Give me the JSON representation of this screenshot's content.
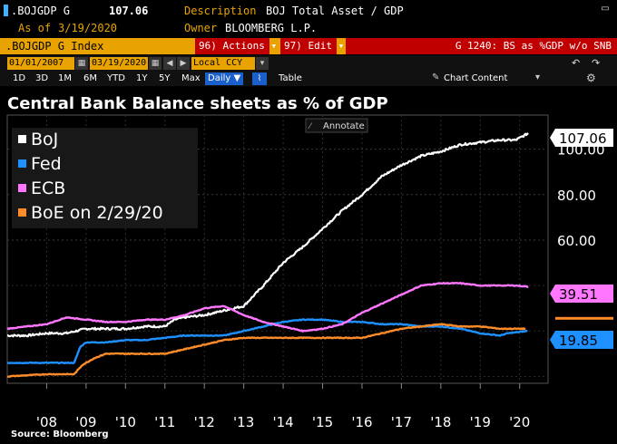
{
  "header": {
    "ticker": ".BOJGDP G",
    "value": "107.06",
    "desc_label": "Description",
    "desc_value": "BOJ Total Asset / GDP",
    "asof_label": "As of",
    "asof_value": "3/19/2020",
    "owner_label": "Owner",
    "owner_value": "BLOOMBERG L.P.",
    "accent": "#e8a300"
  },
  "toolbar": {
    "index_label": ".BOJGDP G Index",
    "actions_label": "96) Actions ▾",
    "edit_label": "97) Edit ▾",
    "page_label": "G 1240: BS as %GDP w/o SNB"
  },
  "dates": {
    "start": "01/01/2007",
    "end": "03/19/2020",
    "currency": "Local CCY"
  },
  "ranges": {
    "items": [
      "1D",
      "3D",
      "1M",
      "6M",
      "YTD",
      "1Y",
      "5Y",
      "Max"
    ],
    "period": "Daily ▼",
    "table_label": "Table",
    "chart_content_label": "Chart Content"
  },
  "annotate_label": "Annotate",
  "source": "Source: Bloomberg",
  "chart_data": {
    "type": "line",
    "title": "Central Bank Balance sheets as % of GDP",
    "xlabel": "",
    "ylabel": "",
    "xlim": [
      2007.0,
      2020.72
    ],
    "ylim": [
      -3,
      115
    ],
    "y_ticks": [
      {
        "v": 100,
        "label": "100.00"
      },
      {
        "v": 80,
        "label": "80.00"
      },
      {
        "v": 60,
        "label": "60.00"
      }
    ],
    "x_ticks": [
      {
        "v": 2008,
        "label": "'08"
      },
      {
        "v": 2009,
        "label": "'09"
      },
      {
        "v": 2010,
        "label": "'10"
      },
      {
        "v": 2011,
        "label": "'11"
      },
      {
        "v": 2012,
        "label": "'12"
      },
      {
        "v": 2013,
        "label": "'13"
      },
      {
        "v": 2014,
        "label": "'14"
      },
      {
        "v": 2015,
        "label": "'15"
      },
      {
        "v": 2016,
        "label": "'16"
      },
      {
        "v": 2017,
        "label": "'17"
      },
      {
        "v": 2018,
        "label": "'18"
      },
      {
        "v": 2019,
        "label": "'19"
      },
      {
        "v": 2020,
        "label": "'20"
      }
    ],
    "legend_position": "top-left",
    "series": [
      {
        "name": "BoJ",
        "color": "#ffffff",
        "last_label": "107.06",
        "points": [
          [
            2007.0,
            18
          ],
          [
            2007.5,
            18
          ],
          [
            2008.0,
            19
          ],
          [
            2008.5,
            19
          ],
          [
            2009.0,
            21
          ],
          [
            2009.5,
            21
          ],
          [
            2010.0,
            21
          ],
          [
            2010.5,
            22
          ],
          [
            2011.0,
            22
          ],
          [
            2011.25,
            25
          ],
          [
            2011.5,
            26
          ],
          [
            2012.0,
            27
          ],
          [
            2012.5,
            29
          ],
          [
            2013.0,
            31
          ],
          [
            2013.5,
            40
          ],
          [
            2014.0,
            50
          ],
          [
            2014.5,
            57
          ],
          [
            2015.0,
            65
          ],
          [
            2015.5,
            73
          ],
          [
            2016.0,
            80
          ],
          [
            2016.5,
            88
          ],
          [
            2017.0,
            93
          ],
          [
            2017.5,
            97
          ],
          [
            2018.0,
            99
          ],
          [
            2018.5,
            102
          ],
          [
            2019.0,
            103
          ],
          [
            2019.5,
            104
          ],
          [
            2019.9,
            104
          ],
          [
            2020.22,
            107
          ]
        ]
      },
      {
        "name": "Fed",
        "color": "#1e90ff",
        "last_label": "19.85",
        "points": [
          [
            2007.0,
            6
          ],
          [
            2008.7,
            6
          ],
          [
            2008.85,
            13
          ],
          [
            2009.0,
            15
          ],
          [
            2009.5,
            15
          ],
          [
            2010.0,
            16
          ],
          [
            2010.5,
            16
          ],
          [
            2011.0,
            17
          ],
          [
            2011.5,
            18
          ],
          [
            2012.0,
            18
          ],
          [
            2012.5,
            18
          ],
          [
            2013.0,
            20
          ],
          [
            2013.5,
            22
          ],
          [
            2014.0,
            24
          ],
          [
            2014.5,
            25
          ],
          [
            2015.0,
            25
          ],
          [
            2015.5,
            24
          ],
          [
            2016.0,
            24
          ],
          [
            2016.5,
            23
          ],
          [
            2017.0,
            23
          ],
          [
            2017.5,
            22
          ],
          [
            2018.0,
            22
          ],
          [
            2018.5,
            21
          ],
          [
            2019.0,
            19
          ],
          [
            2019.5,
            18
          ],
          [
            2019.7,
            19
          ],
          [
            2020.2,
            20
          ]
        ]
      },
      {
        "name": "ECB",
        "color": "#ff77ff",
        "last_label": "39.51",
        "points": [
          [
            2007.0,
            21
          ],
          [
            2007.5,
            22
          ],
          [
            2008.0,
            23
          ],
          [
            2008.5,
            26
          ],
          [
            2009.0,
            25
          ],
          [
            2009.5,
            24
          ],
          [
            2010.0,
            24
          ],
          [
            2010.5,
            25
          ],
          [
            2011.0,
            25
          ],
          [
            2011.5,
            27
          ],
          [
            2012.0,
            30
          ],
          [
            2012.5,
            31
          ],
          [
            2013.0,
            27
          ],
          [
            2013.5,
            24
          ],
          [
            2014.0,
            22
          ],
          [
            2014.5,
            20
          ],
          [
            2015.0,
            21
          ],
          [
            2015.5,
            23
          ],
          [
            2016.0,
            28
          ],
          [
            2016.5,
            32
          ],
          [
            2017.0,
            36
          ],
          [
            2017.5,
            40
          ],
          [
            2018.0,
            41
          ],
          [
            2018.5,
            41
          ],
          [
            2019.0,
            40
          ],
          [
            2019.5,
            40
          ],
          [
            2019.9,
            40
          ],
          [
            2020.22,
            39.5
          ]
        ]
      },
      {
        "name": "BoE on 2/29/20",
        "color": "#ff8c28",
        "last_label": "",
        "points": [
          [
            2007.0,
            0
          ],
          [
            2008.0,
            1
          ],
          [
            2008.7,
            1
          ],
          [
            2008.9,
            5
          ],
          [
            2009.2,
            8
          ],
          [
            2009.5,
            10
          ],
          [
            2010.0,
            10
          ],
          [
            2010.5,
            10
          ],
          [
            2011.0,
            10
          ],
          [
            2011.5,
            12
          ],
          [
            2012.0,
            14
          ],
          [
            2012.5,
            16
          ],
          [
            2013.0,
            17
          ],
          [
            2013.5,
            17
          ],
          [
            2014.0,
            17
          ],
          [
            2014.5,
            17
          ],
          [
            2015.0,
            17
          ],
          [
            2015.5,
            17
          ],
          [
            2016.0,
            17
          ],
          [
            2016.5,
            19
          ],
          [
            2017.0,
            21
          ],
          [
            2017.5,
            22
          ],
          [
            2018.0,
            23
          ],
          [
            2018.5,
            22
          ],
          [
            2019.0,
            22
          ],
          [
            2019.5,
            21
          ],
          [
            2020.15,
            21
          ]
        ]
      }
    ]
  }
}
